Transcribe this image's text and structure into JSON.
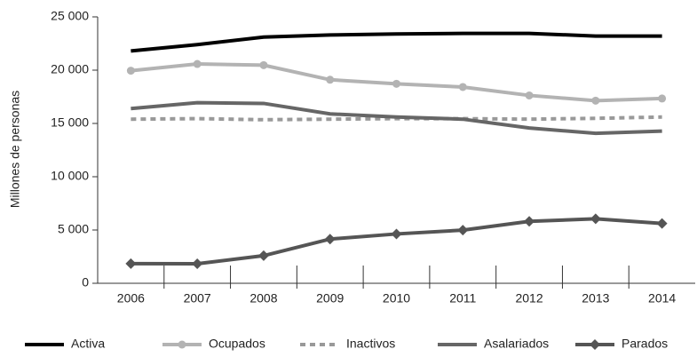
{
  "chart_data": {
    "type": "line",
    "y_label": "Millones de personas",
    "categories": [
      "2006",
      "2007",
      "2008",
      "2009",
      "2010",
      "2011",
      "2012",
      "2013",
      "2014"
    ],
    "series": [
      {
        "name": "Activa",
        "color": "#000000",
        "dash": false,
        "marker": "none",
        "values": [
          21800,
          22400,
          23100,
          23300,
          23400,
          23450,
          23450,
          23200,
          23200
        ]
      },
      {
        "name": "Ocupados",
        "color": "#b3b3b3",
        "dash": false,
        "marker": "circle",
        "values": [
          19950,
          20580,
          20470,
          19100,
          18720,
          18420,
          17630,
          17140,
          17340
        ]
      },
      {
        "name": "Inactivos",
        "color": "#999999",
        "dash": true,
        "marker": "none",
        "values": [
          15400,
          15450,
          15350,
          15400,
          15450,
          15450,
          15400,
          15480,
          15600
        ]
      },
      {
        "name": "Asalariados",
        "color": "#666666",
        "dash": false,
        "marker": "none",
        "values": [
          16400,
          16950,
          16880,
          15900,
          15600,
          15400,
          14570,
          14070,
          14280
        ]
      },
      {
        "name": "Parados",
        "color": "#555555",
        "dash": false,
        "marker": "diamond",
        "values": [
          1840,
          1830,
          2590,
          4150,
          4630,
          4990,
          5810,
          6050,
          5610
        ]
      }
    ],
    "ylim": [
      0,
      25000
    ],
    "yticks": [
      0,
      {
        "value": 5000,
        "label": "5 000"
      },
      {
        "value": 10000,
        "label": "10 000"
      },
      {
        "value": 15000,
        "label": "15 000"
      },
      {
        "value": 20000,
        "label": "20 000"
      },
      {
        "value": 25000,
        "label": "25 000"
      }
    ],
    "grid": false,
    "legend": "bottom"
  }
}
